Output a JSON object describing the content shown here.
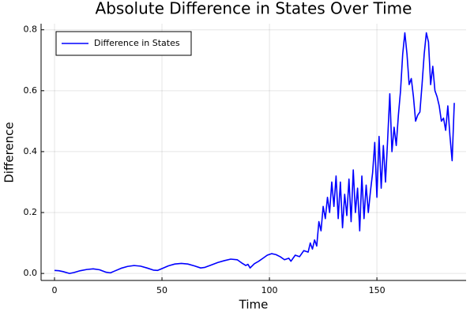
{
  "chart_data": {
    "type": "line",
    "title": "Absolute Difference in States Over Time",
    "xlabel": "Time",
    "ylabel": "Difference",
    "grid": true,
    "legend": "top-left",
    "xlim": [
      -6.25,
      191.5
    ],
    "ylim": [
      -0.023,
      0.82
    ],
    "xticks": [
      0,
      50,
      100,
      150
    ],
    "yticks": [
      {
        "value": 0,
        "label": "0.0"
      },
      0.2,
      0.4,
      0.6,
      0.8
    ],
    "x": [
      0,
      2,
      4,
      6,
      7,
      9,
      12,
      15,
      18,
      21,
      24,
      26,
      28,
      31,
      34,
      37,
      40,
      43,
      46,
      48,
      50,
      53,
      56,
      59,
      62,
      65,
      68,
      70,
      73,
      76,
      79,
      82,
      85,
      87,
      89,
      90,
      91,
      93,
      95,
      97,
      99,
      101,
      103,
      105,
      107,
      109,
      110,
      112,
      114,
      116,
      118,
      119,
      120,
      121,
      122,
      123,
      124,
      125,
      126,
      127,
      128,
      129,
      130,
      131,
      132,
      133,
      134,
      135,
      136,
      137,
      138,
      139,
      140,
      141,
      142,
      143,
      144,
      145,
      146,
      147,
      148,
      149,
      150,
      151,
      152,
      153,
      154,
      155,
      156,
      157,
      158,
      159,
      160,
      161,
      162,
      163,
      164,
      165,
      166,
      167,
      168,
      169,
      170,
      171,
      172,
      173,
      174,
      175,
      176,
      177,
      178,
      179,
      180,
      181,
      182,
      183,
      184,
      185,
      186
    ],
    "series": [
      {
        "name": "Difference in States",
        "color": "#0000ff",
        "values": [
          0.01,
          0.009,
          0.006,
          0.002,
          0.0,
          0.003,
          0.009,
          0.013,
          0.015,
          0.012,
          0.004,
          0.002,
          0.008,
          0.017,
          0.023,
          0.026,
          0.024,
          0.018,
          0.011,
          0.01,
          0.016,
          0.025,
          0.031,
          0.033,
          0.031,
          0.025,
          0.018,
          0.02,
          0.028,
          0.036,
          0.042,
          0.047,
          0.045,
          0.035,
          0.026,
          0.03,
          0.018,
          0.032,
          0.04,
          0.05,
          0.06,
          0.065,
          0.062,
          0.055,
          0.045,
          0.05,
          0.04,
          0.06,
          0.055,
          0.075,
          0.07,
          0.1,
          0.08,
          0.11,
          0.09,
          0.17,
          0.14,
          0.22,
          0.18,
          0.25,
          0.2,
          0.3,
          0.22,
          0.32,
          0.18,
          0.3,
          0.15,
          0.26,
          0.19,
          0.31,
          0.17,
          0.34,
          0.2,
          0.28,
          0.14,
          0.32,
          0.18,
          0.29,
          0.2,
          0.27,
          0.33,
          0.43,
          0.25,
          0.45,
          0.28,
          0.42,
          0.3,
          0.44,
          0.59,
          0.4,
          0.48,
          0.42,
          0.52,
          0.6,
          0.72,
          0.79,
          0.72,
          0.62,
          0.64,
          0.58,
          0.5,
          0.52,
          0.53,
          0.62,
          0.72,
          0.79,
          0.76,
          0.62,
          0.68,
          0.6,
          0.58,
          0.55,
          0.5,
          0.51,
          0.47,
          0.55,
          0.45,
          0.37,
          0.56
        ]
      }
    ]
  }
}
